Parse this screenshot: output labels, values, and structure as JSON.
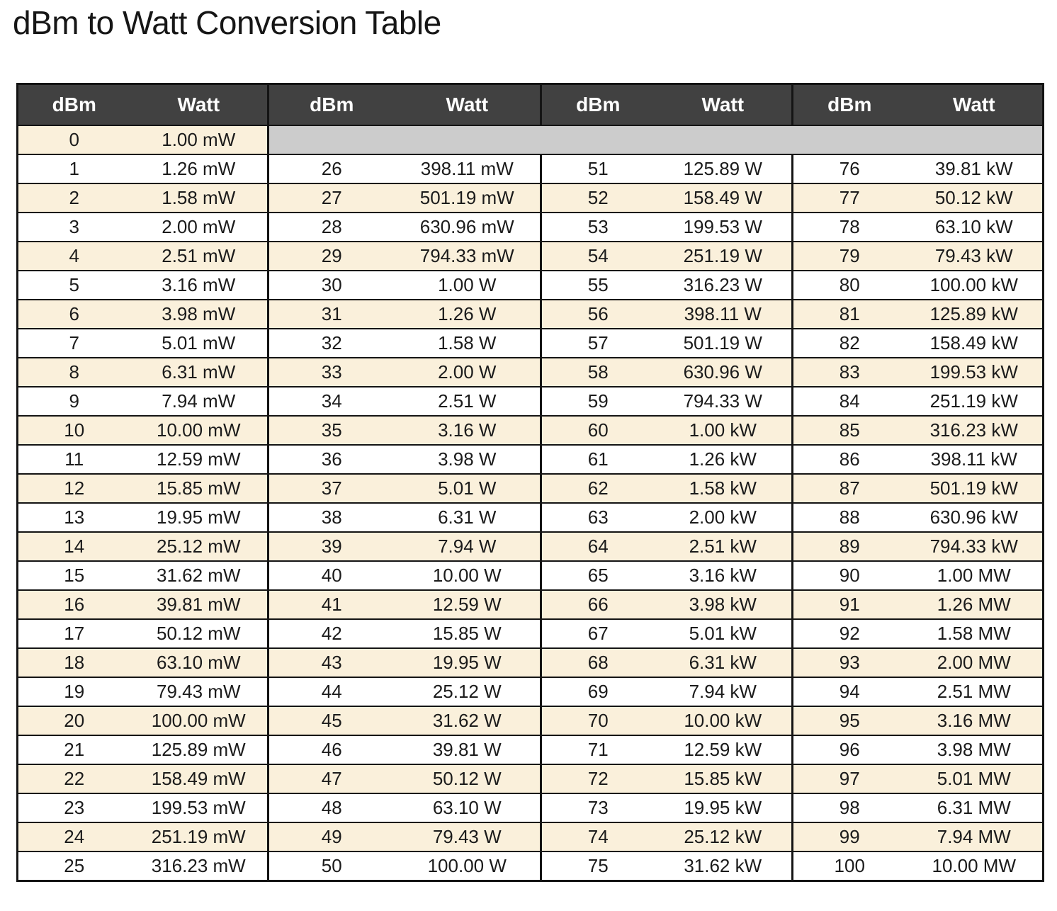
{
  "page": {
    "title": "dBm to Watt Conversion Table"
  },
  "colors": {
    "header_bg": "#414141",
    "header_text": "#ffffff",
    "row_alt": "#faf0db",
    "row_default": "#ffffff",
    "empty_cell": "#cccccc",
    "border": "#141414"
  },
  "table": {
    "header": {
      "dbm_label": "dBm",
      "watt_label": "Watt"
    },
    "groups": [
      {
        "range": "0-25",
        "entries": [
          {
            "dbm": "0",
            "watt": "1.00 mW"
          },
          {
            "dbm": "1",
            "watt": "1.26 mW"
          },
          {
            "dbm": "2",
            "watt": "1.58 mW"
          },
          {
            "dbm": "3",
            "watt": "2.00 mW"
          },
          {
            "dbm": "4",
            "watt": "2.51 mW"
          },
          {
            "dbm": "5",
            "watt": "3.16 mW"
          },
          {
            "dbm": "6",
            "watt": "3.98 mW"
          },
          {
            "dbm": "7",
            "watt": "5.01 mW"
          },
          {
            "dbm": "8",
            "watt": "6.31 mW"
          },
          {
            "dbm": "9",
            "watt": "7.94 mW"
          },
          {
            "dbm": "10",
            "watt": "10.00 mW"
          },
          {
            "dbm": "11",
            "watt": "12.59 mW"
          },
          {
            "dbm": "12",
            "watt": "15.85 mW"
          },
          {
            "dbm": "13",
            "watt": "19.95 mW"
          },
          {
            "dbm": "14",
            "watt": "25.12 mW"
          },
          {
            "dbm": "15",
            "watt": "31.62 mW"
          },
          {
            "dbm": "16",
            "watt": "39.81 mW"
          },
          {
            "dbm": "17",
            "watt": "50.12 mW"
          },
          {
            "dbm": "18",
            "watt": "63.10 mW"
          },
          {
            "dbm": "19",
            "watt": "79.43 mW"
          },
          {
            "dbm": "20",
            "watt": "100.00 mW"
          },
          {
            "dbm": "21",
            "watt": "125.89 mW"
          },
          {
            "dbm": "22",
            "watt": "158.49 mW"
          },
          {
            "dbm": "23",
            "watt": "199.53 mW"
          },
          {
            "dbm": "24",
            "watt": "251.19 mW"
          },
          {
            "dbm": "25",
            "watt": "316.23 mW"
          }
        ]
      },
      {
        "range": "26-50",
        "entries": [
          {
            "dbm": "26",
            "watt": "398.11 mW"
          },
          {
            "dbm": "27",
            "watt": "501.19 mW"
          },
          {
            "dbm": "28",
            "watt": "630.96 mW"
          },
          {
            "dbm": "29",
            "watt": "794.33 mW"
          },
          {
            "dbm": "30",
            "watt": "1.00 W"
          },
          {
            "dbm": "31",
            "watt": "1.26 W"
          },
          {
            "dbm": "32",
            "watt": "1.58 W"
          },
          {
            "dbm": "33",
            "watt": "2.00 W"
          },
          {
            "dbm": "34",
            "watt": "2.51 W"
          },
          {
            "dbm": "35",
            "watt": "3.16 W"
          },
          {
            "dbm": "36",
            "watt": "3.98 W"
          },
          {
            "dbm": "37",
            "watt": "5.01 W"
          },
          {
            "dbm": "38",
            "watt": "6.31 W"
          },
          {
            "dbm": "39",
            "watt": "7.94 W"
          },
          {
            "dbm": "40",
            "watt": "10.00 W"
          },
          {
            "dbm": "41",
            "watt": "12.59 W"
          },
          {
            "dbm": "42",
            "watt": "15.85 W"
          },
          {
            "dbm": "43",
            "watt": "19.95 W"
          },
          {
            "dbm": "44",
            "watt": "25.12 W"
          },
          {
            "dbm": "45",
            "watt": "31.62 W"
          },
          {
            "dbm": "46",
            "watt": "39.81 W"
          },
          {
            "dbm": "47",
            "watt": "50.12 W"
          },
          {
            "dbm": "48",
            "watt": "63.10 W"
          },
          {
            "dbm": "49",
            "watt": "79.43 W"
          },
          {
            "dbm": "50",
            "watt": "100.00 W"
          }
        ]
      },
      {
        "range": "51-75",
        "entries": [
          {
            "dbm": "51",
            "watt": "125.89 W"
          },
          {
            "dbm": "52",
            "watt": "158.49 W"
          },
          {
            "dbm": "53",
            "watt": "199.53 W"
          },
          {
            "dbm": "54",
            "watt": "251.19 W"
          },
          {
            "dbm": "55",
            "watt": "316.23 W"
          },
          {
            "dbm": "56",
            "watt": "398.11 W"
          },
          {
            "dbm": "57",
            "watt": "501.19 W"
          },
          {
            "dbm": "58",
            "watt": "630.96 W"
          },
          {
            "dbm": "59",
            "watt": "794.33 W"
          },
          {
            "dbm": "60",
            "watt": "1.00 kW"
          },
          {
            "dbm": "61",
            "watt": "1.26 kW"
          },
          {
            "dbm": "62",
            "watt": "1.58 kW"
          },
          {
            "dbm": "63",
            "watt": "2.00 kW"
          },
          {
            "dbm": "64",
            "watt": "2.51 kW"
          },
          {
            "dbm": "65",
            "watt": "3.16 kW"
          },
          {
            "dbm": "66",
            "watt": "3.98 kW"
          },
          {
            "dbm": "67",
            "watt": "5.01 kW"
          },
          {
            "dbm": "68",
            "watt": "6.31 kW"
          },
          {
            "dbm": "69",
            "watt": "7.94 kW"
          },
          {
            "dbm": "70",
            "watt": "10.00 kW"
          },
          {
            "dbm": "71",
            "watt": "12.59 kW"
          },
          {
            "dbm": "72",
            "watt": "15.85 kW"
          },
          {
            "dbm": "73",
            "watt": "19.95 kW"
          },
          {
            "dbm": "74",
            "watt": "25.12 kW"
          },
          {
            "dbm": "75",
            "watt": "31.62 kW"
          }
        ]
      },
      {
        "range": "76-100",
        "entries": [
          {
            "dbm": "76",
            "watt": "39.81 kW"
          },
          {
            "dbm": "77",
            "watt": "50.12 kW"
          },
          {
            "dbm": "78",
            "watt": "63.10 kW"
          },
          {
            "dbm": "79",
            "watt": "79.43 kW"
          },
          {
            "dbm": "80",
            "watt": "100.00 kW"
          },
          {
            "dbm": "81",
            "watt": "125.89 kW"
          },
          {
            "dbm": "82",
            "watt": "158.49 kW"
          },
          {
            "dbm": "83",
            "watt": "199.53 kW"
          },
          {
            "dbm": "84",
            "watt": "251.19 kW"
          },
          {
            "dbm": "85",
            "watt": "316.23 kW"
          },
          {
            "dbm": "86",
            "watt": "398.11 kW"
          },
          {
            "dbm": "87",
            "watt": "501.19 kW"
          },
          {
            "dbm": "88",
            "watt": "630.96 kW"
          },
          {
            "dbm": "89",
            "watt": "794.33 kW"
          },
          {
            "dbm": "90",
            "watt": "1.00 MW"
          },
          {
            "dbm": "91",
            "watt": "1.26 MW"
          },
          {
            "dbm": "92",
            "watt": "1.58 MW"
          },
          {
            "dbm": "93",
            "watt": "2.00 MW"
          },
          {
            "dbm": "94",
            "watt": "2.51 MW"
          },
          {
            "dbm": "95",
            "watt": "3.16 MW"
          },
          {
            "dbm": "96",
            "watt": "3.98 MW"
          },
          {
            "dbm": "97",
            "watt": "5.01 MW"
          },
          {
            "dbm": "98",
            "watt": "6.31 MW"
          },
          {
            "dbm": "99",
            "watt": "7.94 MW"
          },
          {
            "dbm": "100",
            "watt": "10.00 MW"
          }
        ]
      }
    ]
  }
}
